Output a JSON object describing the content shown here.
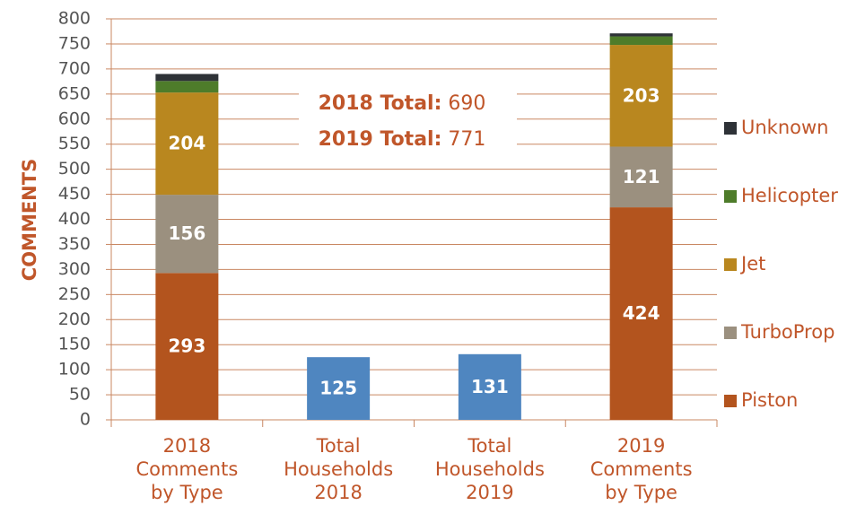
{
  "chart_data": {
    "type": "stacked_bar",
    "y_label": "COMMENTS",
    "categories": [
      "2018\nComments\nby Type",
      "Total\nHouseholds\n2018",
      "Total\nHouseholds\n2019",
      "2019\nComments\nby Type"
    ],
    "series": [
      {
        "name": "Piston",
        "color": "#b3541e",
        "values": [
          293,
          null,
          null,
          424
        ]
      },
      {
        "name": "TurboProp",
        "color": "#9b907f",
        "values": [
          156,
          null,
          null,
          121
        ]
      },
      {
        "name": "Jet",
        "color": "#b9871f",
        "values": [
          204,
          null,
          null,
          203
        ]
      },
      {
        "name": "Helicopter",
        "color": "#4e7c2a",
        "values": [
          23,
          null,
          null,
          17
        ]
      },
      {
        "name": "Unknown",
        "color": "#2e3237",
        "values": [
          14,
          null,
          null,
          6
        ]
      },
      {
        "color": "#4f86c0",
        "values": [
          null,
          125,
          131,
          null
        ]
      }
    ],
    "annotations": [
      {
        "label": "2018 Total:",
        "value": 690
      },
      {
        "label": "2019 Total:",
        "value": 771
      }
    ],
    "ylim": [
      0,
      800
    ],
    "yticks": [
      0,
      50,
      100,
      150,
      200,
      250,
      300,
      350,
      400,
      450,
      500,
      550,
      600,
      650,
      700,
      750,
      800
    ],
    "grid": true,
    "legend": "right"
  }
}
